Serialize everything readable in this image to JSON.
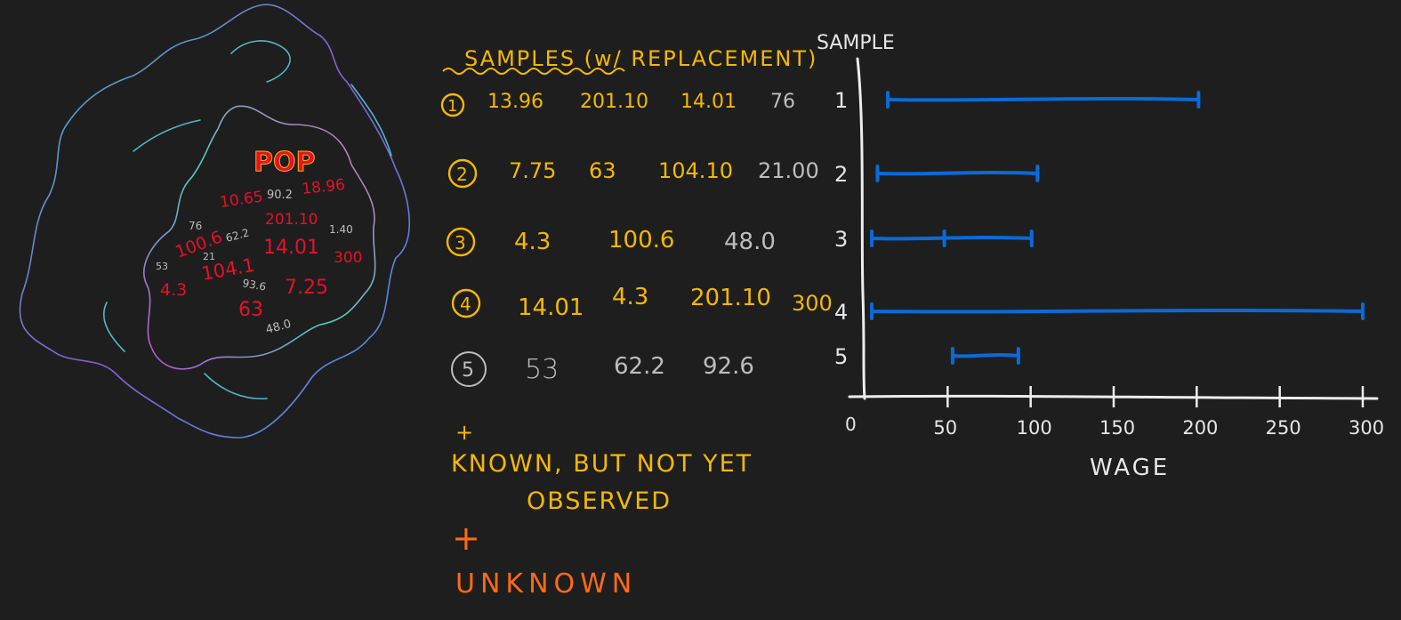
{
  "population": {
    "label": "POP",
    "values": [
      {
        "text": "10.65",
        "color": "#e8102a"
      },
      {
        "text": "90.2",
        "color": "#bdbdbd"
      },
      {
        "text": "18.96",
        "color": "#e8102a"
      },
      {
        "text": "100.6",
        "color": "#e8102a"
      },
      {
        "text": "201.10",
        "color": "#e8102a"
      },
      {
        "text": "76",
        "color": "#bdbdbd"
      },
      {
        "text": "62.2",
        "color": "#bdbdbd"
      },
      {
        "text": "1.40",
        "color": "#bdbdbd"
      },
      {
        "text": "53",
        "color": "#bdbdbd"
      },
      {
        "text": "21",
        "color": "#bdbdbd"
      },
      {
        "text": "14.01",
        "color": "#e8102a"
      },
      {
        "text": "300",
        "color": "#e8102a"
      },
      {
        "text": "4.3",
        "color": "#e8102a"
      },
      {
        "text": "104.1",
        "color": "#e8102a"
      },
      {
        "text": "93.6",
        "color": "#bdbdbd"
      },
      {
        "text": "7.25",
        "color": "#e8102a"
      },
      {
        "text": "63",
        "color": "#e8102a"
      },
      {
        "text": "48.0",
        "color": "#bdbdbd"
      }
    ]
  },
  "samples": {
    "title": "SAMPLES (w/ REPLACEMENT)",
    "rows": [
      {
        "id": "1",
        "values": [
          "13.96",
          "201.10",
          "14.01",
          "76"
        ],
        "value_colors": [
          "#f5b800",
          "#f5b800",
          "#f5b800",
          "#bdbdbd"
        ]
      },
      {
        "id": "2",
        "values": [
          "7.75",
          "63",
          "104.10",
          "21.00"
        ],
        "value_colors": [
          "#f5b800",
          "#f5b800",
          "#f5b800",
          "#bdbdbd"
        ]
      },
      {
        "id": "3",
        "values": [
          "4.3",
          "100.6",
          "48.0"
        ],
        "value_colors": [
          "#f5b800",
          "#f5b800",
          "#bdbdbd"
        ]
      },
      {
        "id": "4",
        "values": [
          "14.01",
          "4.3",
          "201.10",
          "300"
        ],
        "value_colors": [
          "#f5b800",
          "#f5b800",
          "#f5b800",
          "#f5b800"
        ]
      },
      {
        "id": "5",
        "values": [
          "53",
          "62.2",
          "92.6"
        ],
        "value_colors": [
          "#bdbdbd",
          "#bdbdbd",
          "#bdbdbd"
        ]
      }
    ]
  },
  "legend": {
    "known": {
      "symbol": "+",
      "line1": "KNOWN, BUT NOT YET",
      "line2": "OBSERVED",
      "color": "#f5b800"
    },
    "unknown": {
      "symbol": "+",
      "label": "UNKNOWN",
      "color": "#ff6a14"
    }
  },
  "chart_data": {
    "type": "range",
    "ylabel": "SAMPLE",
    "xlabel": "WAGE",
    "origin_label": "0",
    "xlim": [
      0,
      300
    ],
    "xticks": [
      50,
      100,
      150,
      200,
      250,
      300
    ],
    "categories": [
      "1",
      "2",
      "3",
      "4",
      "5"
    ],
    "ranges": [
      {
        "sample": "1",
        "min": 13.96,
        "max": 201.1,
        "marks": [
          13.96,
          201.1
        ]
      },
      {
        "sample": "2",
        "min": 7.75,
        "max": 104.1,
        "marks": [
          7.75,
          104.1
        ]
      },
      {
        "sample": "3",
        "min": 4.3,
        "max": 100.6,
        "marks": [
          4.3,
          48.0,
          100.6
        ]
      },
      {
        "sample": "4",
        "min": 4.3,
        "max": 300,
        "marks": [
          4.3,
          300
        ]
      },
      {
        "sample": "5",
        "min": 53,
        "max": 92.6,
        "marks": [
          53,
          92.6
        ]
      }
    ],
    "bar_color": "#0a6ad8"
  }
}
